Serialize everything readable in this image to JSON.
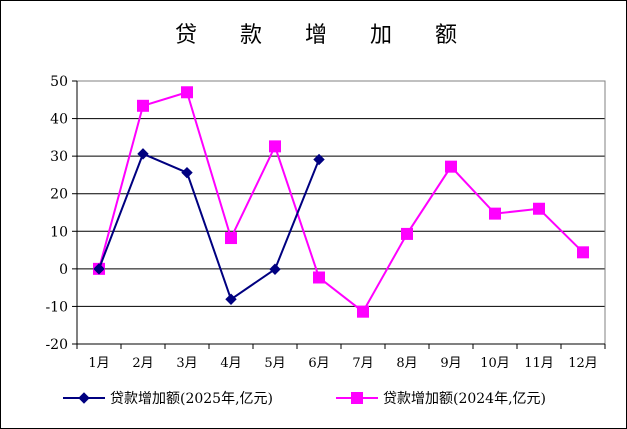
{
  "chart_data": {
    "type": "line",
    "title": "贷 款 增 加 额",
    "xlabel": "",
    "ylabel": "",
    "categories": [
      "1月",
      "2月",
      "3月",
      "4月",
      "5月",
      "6月",
      "7月",
      "8月",
      "9月",
      "10月",
      "11月",
      "12月"
    ],
    "ylim": [
      -20,
      50
    ],
    "yticks": [
      -20,
      -10,
      0,
      10,
      20,
      30,
      40,
      50
    ],
    "ytick_labels": [
      "-20",
      "-10",
      "0",
      "10",
      "20",
      "30",
      "40",
      "50"
    ],
    "grid": true,
    "legend_position": "bottom",
    "series": [
      {
        "name": "贷款增加额(2025年,亿元)",
        "color": "#000080",
        "marker": "diamond",
        "values": [
          0,
          30.6,
          25.6,
          -8.1,
          -0.1,
          29.1,
          null,
          null,
          null,
          null,
          null,
          null
        ]
      },
      {
        "name": "贷款增加额(2024年,亿元)",
        "color": "#FF00FF",
        "marker": "square",
        "values": [
          0,
          43.4,
          47,
          8.2,
          32.6,
          -2.3,
          -11.4,
          9.3,
          27.2,
          14.7,
          16,
          4.4
        ]
      }
    ]
  }
}
